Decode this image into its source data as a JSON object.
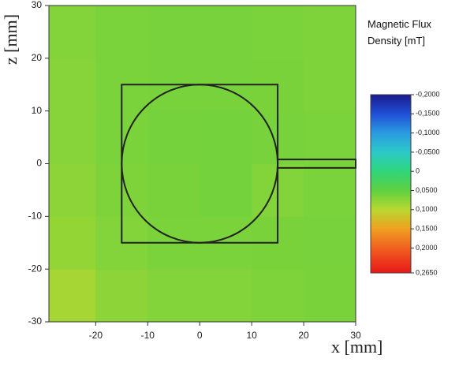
{
  "chart_data": {
    "type": "heatmap",
    "x_label": "x [mm]",
    "y_label": "z [mm]",
    "colorbar_title": "Magnetic Flux Density [mT]",
    "xlim": [
      -29,
      30
    ],
    "xticks": [
      -20,
      -10,
      0,
      10,
      20,
      30
    ],
    "ylim": [
      -30,
      30
    ],
    "yticks": [
      -30,
      -20,
      -10,
      0,
      10,
      20,
      30
    ],
    "x_bins": [
      -29,
      -20,
      -10,
      0,
      10,
      20,
      30
    ],
    "y_bins": [
      -30,
      -20,
      -10,
      0,
      10,
      20,
      30
    ],
    "values": [
      [
        0.09,
        0.075,
        0.07,
        0.07,
        0.068,
        0.065
      ],
      [
        0.08,
        0.07,
        0.066,
        0.066,
        0.065,
        0.064
      ],
      [
        0.075,
        0.068,
        0.065,
        0.062,
        0.07,
        0.066
      ],
      [
        0.072,
        0.066,
        0.063,
        0.062,
        0.064,
        0.066
      ],
      [
        0.072,
        0.066,
        0.064,
        0.064,
        0.065,
        0.068
      ],
      [
        0.07,
        0.066,
        0.064,
        0.064,
        0.066,
        0.068
      ]
    ],
    "clim": [
      -0.2,
      0.265
    ],
    "colorbar_ticks": [
      {
        "value": -0.2,
        "label": "-0,2000"
      },
      {
        "value": -0.15,
        "label": "-0,1500"
      },
      {
        "value": -0.1,
        "label": "-0,1000"
      },
      {
        "value": -0.05,
        "label": "-0,0500"
      },
      0,
      {
        "value": 0.05,
        "label": "0,0500"
      },
      {
        "value": 0.1,
        "label": "0,1000"
      },
      {
        "value": 0.15,
        "label": "0,1500"
      },
      {
        "value": 0.2,
        "label": "0,2000"
      },
      {
        "value": 0.265,
        "label": "0,2650"
      }
    ],
    "colorbar_colors": [
      "#1a1a8c",
      "#1f4fd6",
      "#2a9be0",
      "#2cc9c9",
      "#2fd67a",
      "#5fd040",
      "#b8d830",
      "#f0a020",
      "#f06020",
      "#e81818"
    ],
    "shapes": [
      {
        "kind": "rect",
        "x": [
          -15,
          15
        ],
        "y": [
          -15,
          15
        ]
      },
      {
        "kind": "circle",
        "cx": 0,
        "cy": 0,
        "r": 15
      },
      {
        "kind": "rect",
        "x": [
          15,
          30
        ],
        "y": [
          -0.8,
          0.8
        ]
      }
    ]
  }
}
